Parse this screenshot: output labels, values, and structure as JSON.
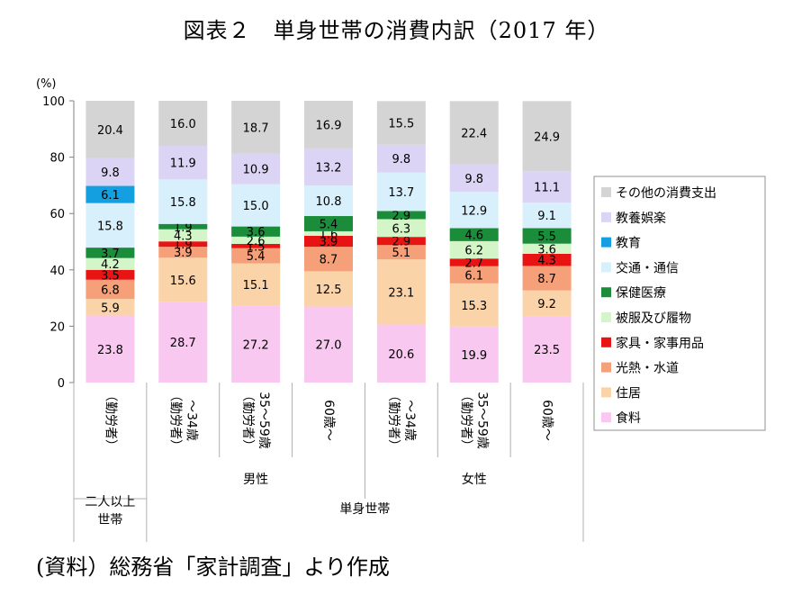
{
  "title": "図表２　単身世帯の消費内訳（2017 年）",
  "source": "(資料）総務省「家計調査」より作成",
  "chart_data": {
    "type": "bar",
    "stacked": true,
    "y_unit_label": "(%)",
    "ylim": [
      0,
      100
    ],
    "yticks": [
      0,
      20,
      40,
      60,
      80,
      100
    ],
    "grid": false,
    "legend_position": "right",
    "categories": [
      {
        "lines": [
          "（勤労者）"
        ]
      },
      {
        "lines": [
          "〜34歳",
          "（勤労者）"
        ]
      },
      {
        "lines": [
          "35〜59歳",
          "（勤労者）"
        ]
      },
      {
        "lines": [
          "60歳〜"
        ]
      },
      {
        "lines": [
          "〜34歳",
          "（勤労者）"
        ]
      },
      {
        "lines": [
          "35〜59歳",
          "（勤労者）"
        ]
      },
      {
        "lines": [
          "60歳〜"
        ]
      }
    ],
    "group_labels": {
      "level1": [
        {
          "label": "男性",
          "from": 1,
          "to": 3
        },
        {
          "label": "女性",
          "from": 4,
          "to": 6
        }
      ],
      "level2": [
        {
          "label": "二人以上\n世帯",
          "from": 0,
          "to": 0
        },
        {
          "label": "単身世帯",
          "from": 1,
          "to": 6
        }
      ]
    },
    "series": [
      {
        "name": "食料",
        "color": "#f8c8f0",
        "values": [
          23.8,
          28.7,
          27.2,
          27.0,
          20.6,
          19.9,
          23.5
        ]
      },
      {
        "name": "住居",
        "color": "#fbd3a8",
        "values": [
          5.9,
          15.6,
          15.1,
          12.5,
          23.1,
          15.3,
          9.2
        ]
      },
      {
        "name": "光熱・水道",
        "color": "#f5a078",
        "values": [
          6.8,
          3.9,
          5.4,
          8.7,
          5.1,
          6.1,
          8.7
        ]
      },
      {
        "name": "家具・家事用品",
        "color": "#e81414",
        "values": [
          3.5,
          1.9,
          1.5,
          3.9,
          2.9,
          2.7,
          4.3
        ]
      },
      {
        "name": "被服及び履物",
        "color": "#d4f5c8",
        "values": [
          4.2,
          4.3,
          2.6,
          1.6,
          6.3,
          6.2,
          3.6
        ]
      },
      {
        "name": "保健医療",
        "color": "#1a8c3a",
        "values": [
          3.7,
          1.9,
          3.6,
          5.4,
          2.9,
          4.6,
          5.5
        ]
      },
      {
        "name": "交通・通信",
        "color": "#d8f0fc",
        "values": [
          15.8,
          15.8,
          15.0,
          10.8,
          13.7,
          12.9,
          9.1
        ]
      },
      {
        "name": "教育",
        "color": "#14a0e0",
        "values": [
          6.1,
          0,
          0,
          0,
          0,
          0,
          0
        ]
      },
      {
        "name": "教養娯楽",
        "color": "#dcd4f4",
        "values": [
          9.8,
          11.9,
          10.9,
          13.2,
          9.8,
          9.8,
          11.1
        ]
      },
      {
        "name": "その他の消費支出",
        "color": "#d4d4d4",
        "values": [
          20.4,
          16.0,
          18.7,
          16.9,
          15.5,
          22.4,
          24.9
        ]
      }
    ]
  }
}
